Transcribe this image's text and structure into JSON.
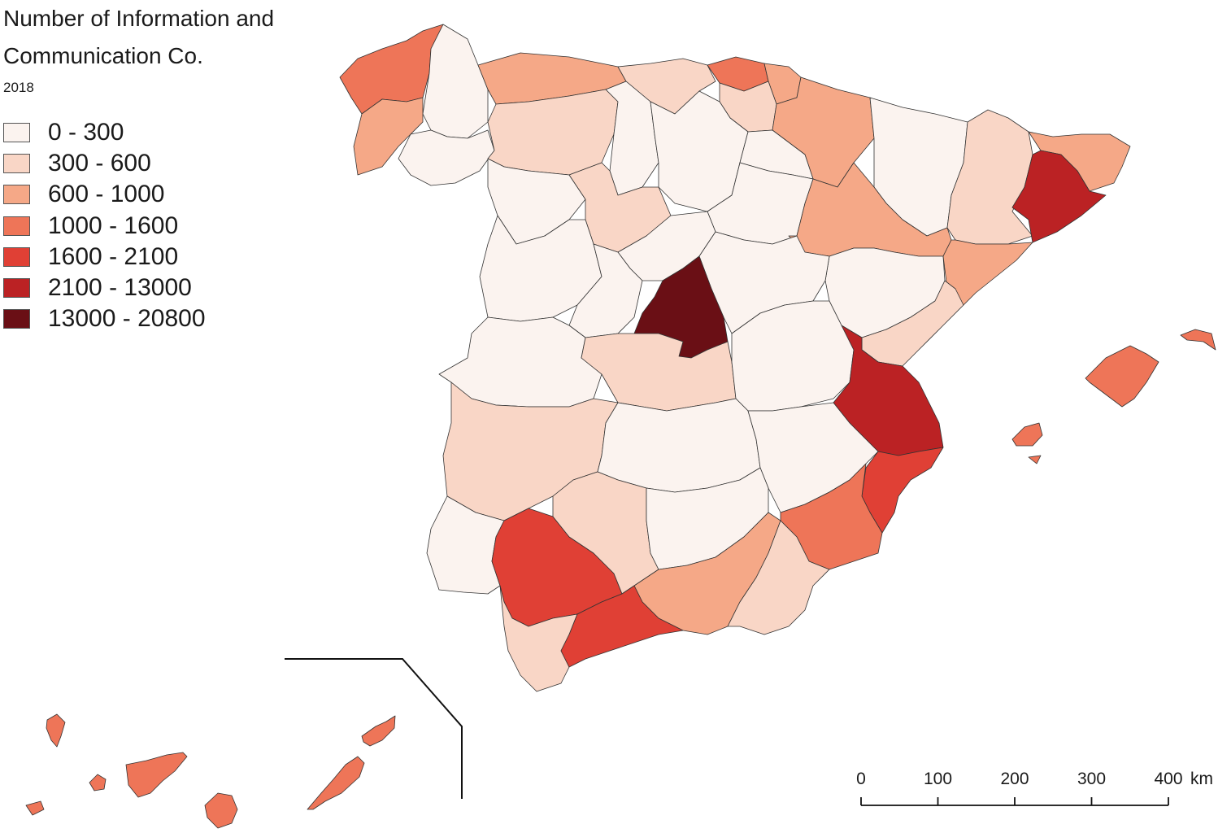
{
  "map": {
    "title": "Number of Information and Communication Co.",
    "subtitle": "2018"
  },
  "legend": {
    "items": [
      {
        "label": "0 - 300",
        "color": "#fbf3ef"
      },
      {
        "label": "300 - 600",
        "color": "#f9d6c6"
      },
      {
        "label": "600 - 1000",
        "color": "#f5a887"
      },
      {
        "label": "1000 - 1600",
        "color": "#ee7558"
      },
      {
        "label": "1600 - 2100",
        "color": "#e04035"
      },
      {
        "label": "2100 - 13000",
        "color": "#bb2224"
      },
      {
        "label": "13000 - 20800",
        "color": "#6a0f15"
      }
    ]
  },
  "scale_bar": {
    "ticks": [
      "0",
      "100",
      "200",
      "300",
      "400"
    ],
    "unit": "km"
  }
}
